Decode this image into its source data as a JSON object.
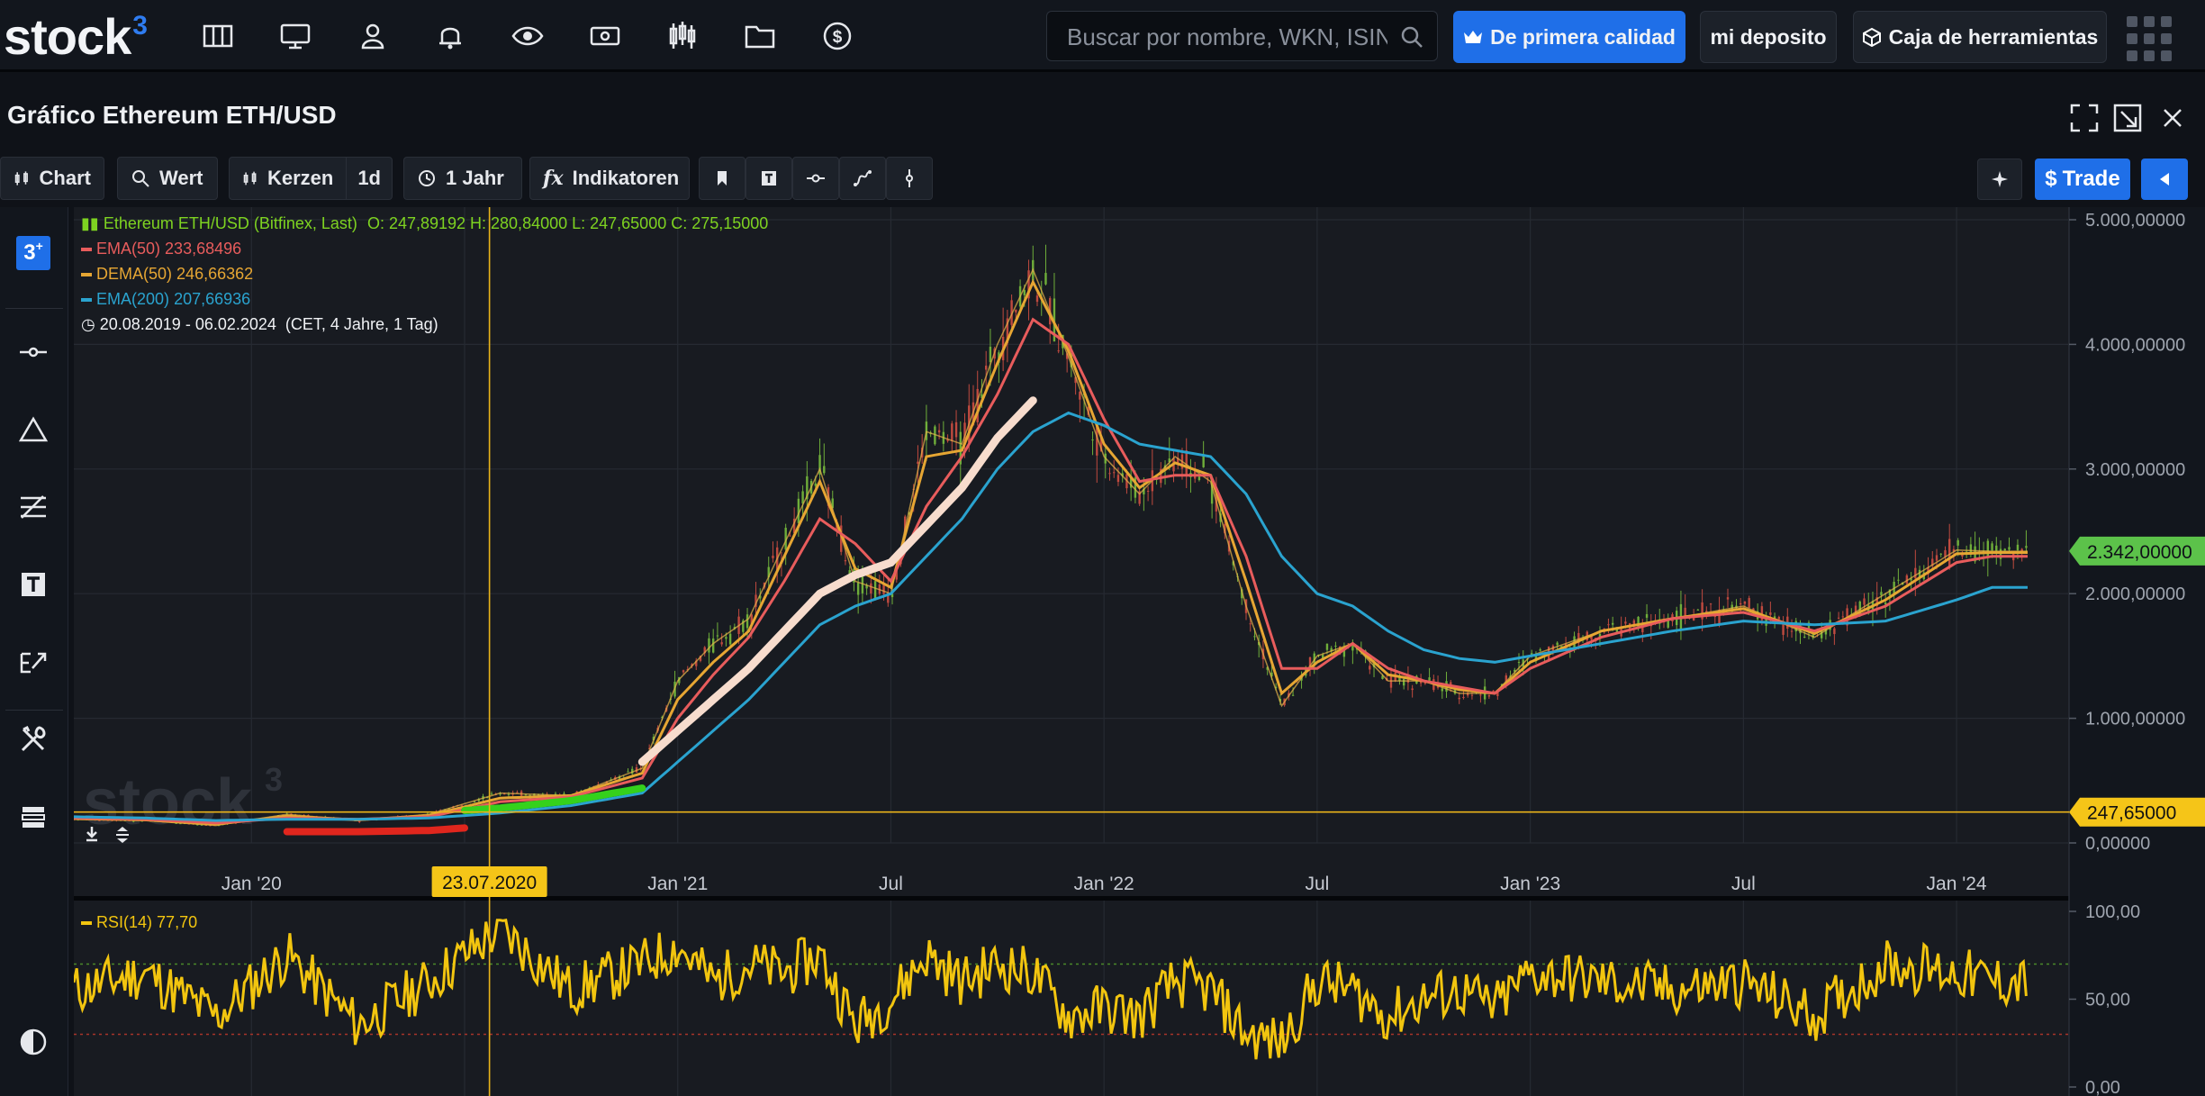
{
  "nav": {
    "logo": "stock",
    "logo_sup": "3",
    "icons": [
      "columns-icon",
      "monitor-icon",
      "user-icon",
      "bell-icon",
      "eye-icon",
      "cash-icon",
      "candlestick-icon",
      "folder-icon",
      "dollar-icon"
    ],
    "search_placeholder": "Buscar por nombre, WKN, ISIN",
    "premium_label": "De primera calidad",
    "deposit_label": "mi deposito",
    "tools_label": "Caja de herramientas"
  },
  "widget": {
    "title": "Gráfico Ethereum ETH/USD"
  },
  "toolbar": {
    "chart": "Chart",
    "wert": "Wert",
    "kerzen": "Kerzen",
    "interval": "1d",
    "range": "1 Jahr",
    "indikatoren": "Indikatoren",
    "trade": "Trade"
  },
  "legend": {
    "main": "Ethereum ETH/USD (Bitfinex, Last)",
    "ohlc": "O: 247,89192  H: 280,84000  L: 247,65000  C: 275,15000",
    "ema50_label": "EMA(50)",
    "ema50_value": "233,68496",
    "dema50_label": "DEMA(50)",
    "dema50_value": "246,66362",
    "ema200_label": "EMA(200)",
    "ema200_value": "207,66936",
    "range": "20.08.2019 - 06.02.2024",
    "range_info": "(CET, 4 Jahre, 1 Tag)",
    "rsi_label": "RSI(14)",
    "rsi_value": "77,70"
  },
  "chart_data": {
    "type": "line",
    "title": "Ethereum ETH/USD",
    "x_ticks": [
      "Jan '20",
      "Jul",
      "Jan '21",
      "Jul",
      "Jan '22",
      "Jul",
      "Jan '23",
      "Jul",
      "Jan '24"
    ],
    "y_ticks": [
      "5.000,00000",
      "4.000,00000",
      "3.000,00000",
      "2.000,00000",
      "1.000,00000",
      "0,00000"
    ],
    "ylim": [
      0,
      5000
    ],
    "cursor_date": "23.07.2020",
    "cursor_price": "247,65000",
    "last_price": "2.342,00000",
    "x_dates": [
      "2019-08",
      "2019-10",
      "2019-12",
      "2020-02",
      "2020-04",
      "2020-06",
      "2020-08",
      "2020-10",
      "2020-12",
      "2021-01",
      "2021-02",
      "2021-03",
      "2021-04",
      "2021-05",
      "2021-06",
      "2021-07",
      "2021-08",
      "2021-09",
      "2021-10",
      "2021-11",
      "2021-12",
      "2022-01",
      "2022-02",
      "2022-03",
      "2022-04",
      "2022-05",
      "2022-06",
      "2022-07",
      "2022-08",
      "2022-09",
      "2022-10",
      "2022-11",
      "2022-12",
      "2023-01",
      "2023-03",
      "2023-05",
      "2023-07",
      "2023-09",
      "2023-11",
      "2024-01",
      "2024-02"
    ],
    "series": [
      {
        "name": "Ethereum ETH/USD",
        "color": "#e9b64a",
        "values": [
          190,
          180,
          140,
          230,
          180,
          230,
          400,
          380,
          600,
          1300,
          1600,
          1800,
          2400,
          3000,
          2100,
          2000,
          3300,
          3200,
          4000,
          4600,
          3900,
          3100,
          2800,
          3100,
          2900,
          1900,
          1100,
          1500,
          1600,
          1300,
          1300,
          1200,
          1200,
          1500,
          1700,
          1800,
          1900,
          1650,
          2000,
          2350,
          2340
        ]
      },
      {
        "name": "EMA(50)",
        "color": "#e85c5c",
        "values": [
          200,
          190,
          160,
          200,
          190,
          210,
          330,
          370,
          520,
          1000,
          1350,
          1650,
          2100,
          2600,
          2400,
          2100,
          2700,
          3100,
          3600,
          4200,
          4000,
          3400,
          2900,
          2950,
          2950,
          2300,
          1400,
          1400,
          1600,
          1400,
          1300,
          1250,
          1200,
          1400,
          1650,
          1800,
          1850,
          1700,
          1900,
          2250,
          2300
        ]
      },
      {
        "name": "DEMA(50)",
        "color": "#e6a633",
        "values": [
          195,
          185,
          150,
          215,
          185,
          220,
          360,
          380,
          560,
          1150,
          1450,
          1700,
          2300,
          2900,
          2200,
          2050,
          3100,
          3150,
          3850,
          4500,
          3950,
          3200,
          2850,
          3050,
          2950,
          2100,
          1200,
          1450,
          1600,
          1350,
          1300,
          1230,
          1200,
          1450,
          1700,
          1800,
          1880,
          1680,
          1950,
          2320,
          2330
        ]
      },
      {
        "name": "EMA(200)",
        "color": "#2aa3cf",
        "values": [
          210,
          200,
          180,
          190,
          190,
          200,
          240,
          300,
          400,
          650,
          900,
          1150,
          1450,
          1750,
          1900,
          2000,
          2300,
          2600,
          3000,
          3300,
          3450,
          3350,
          3200,
          3150,
          3100,
          2800,
          2300,
          2000,
          1900,
          1700,
          1550,
          1480,
          1450,
          1500,
          1600,
          1700,
          1780,
          1750,
          1780,
          1950,
          2050
        ]
      },
      {
        "name": "RSI(14)",
        "color": "#f2c50f",
        "values": [
          55,
          65,
          40,
          75,
          35,
          60,
          90,
          55,
          70,
          80,
          60,
          70,
          65,
          75,
          35,
          50,
          75,
          60,
          70,
          65,
          40,
          45,
          40,
          60,
          55,
          30,
          25,
          60,
          55,
          40,
          50,
          55,
          45,
          65,
          60,
          55,
          60,
          40,
          70,
          65,
          60
        ]
      }
    ],
    "rsi_ticks": [
      "100,00",
      "50,00",
      "0,00"
    ]
  }
}
